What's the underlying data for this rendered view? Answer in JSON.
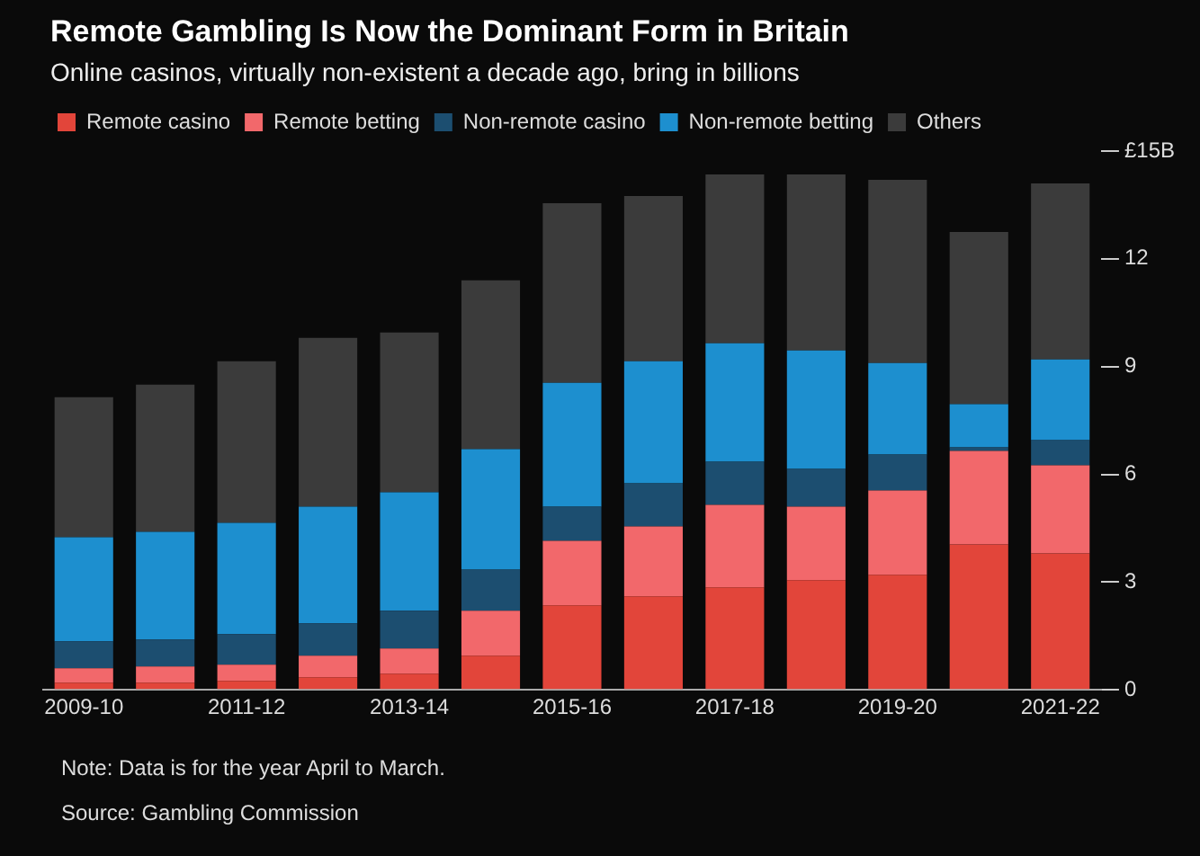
{
  "chart_data": {
    "type": "bar",
    "stacked": true,
    "title": "Remote Gambling Is Now the Dominant Form in Britain",
    "subtitle": "Online casinos, virtually non-existent a decade ago, bring in billions",
    "categories": [
      "2009-10",
      null,
      "2011-12",
      null,
      "2013-14",
      null,
      "2015-16",
      null,
      "2017-18",
      null,
      "2019-20",
      null,
      "2021-22"
    ],
    "series": [
      {
        "name": "Remote casino",
        "color": "#e2453a",
        "values": [
          0.2,
          0.2,
          0.25,
          0.35,
          0.45,
          0.95,
          2.35,
          2.6,
          2.85,
          3.05,
          3.2,
          4.05,
          3.8
        ]
      },
      {
        "name": "Remote betting",
        "color": "#f2686b",
        "values": [
          0.4,
          0.45,
          0.45,
          0.6,
          0.7,
          1.25,
          1.8,
          1.95,
          2.3,
          2.05,
          2.35,
          2.6,
          2.45
        ]
      },
      {
        "name": "Non-remote casino",
        "color": "#1c4e70",
        "values": [
          0.75,
          0.75,
          0.85,
          0.9,
          1.05,
          1.15,
          0.95,
          1.2,
          1.2,
          1.05,
          1.0,
          0.1,
          0.7
        ]
      },
      {
        "name": "Non-remote betting",
        "color": "#1d8fcf",
        "values": [
          2.9,
          3.0,
          3.1,
          3.25,
          3.3,
          3.35,
          3.45,
          3.4,
          3.3,
          3.3,
          2.55,
          1.2,
          2.25
        ]
      },
      {
        "name": "Others",
        "color": "#3b3b3b",
        "values": [
          3.9,
          4.1,
          4.5,
          4.7,
          4.45,
          4.7,
          5.0,
          4.6,
          4.7,
          4.9,
          5.1,
          4.8,
          4.9
        ]
      }
    ],
    "ylim": [
      0,
      15
    ],
    "yticks": [
      0,
      3,
      6,
      9,
      12,
      {
        "value": 15,
        "label": "£15B"
      }
    ],
    "grid": false,
    "legend": "top left",
    "annotations": [
      "Note: Data is for the year April to March.",
      "Source: Gambling Commission"
    ]
  }
}
